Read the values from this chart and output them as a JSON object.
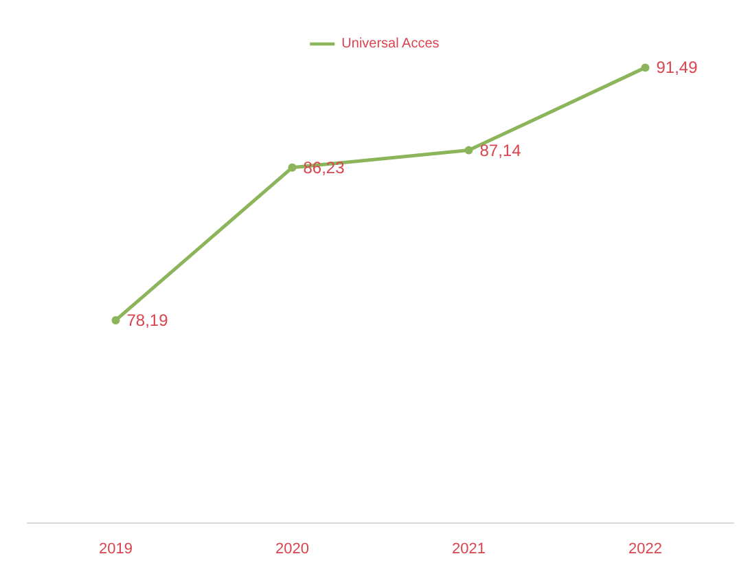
{
  "chart_data": {
    "type": "line",
    "categories": [
      "2019",
      "2020",
      "2021",
      "2022"
    ],
    "series": [
      {
        "name": "Universal Acces",
        "color": "#8cb45a",
        "values": [
          78.19,
          86.23,
          87.14,
          91.49
        ],
        "value_labels": [
          "78,19",
          "86,23",
          "87,14",
          "91,49"
        ]
      }
    ],
    "legend": "top",
    "marker": "circle",
    "line_style": "solid",
    "grid": false
  }
}
